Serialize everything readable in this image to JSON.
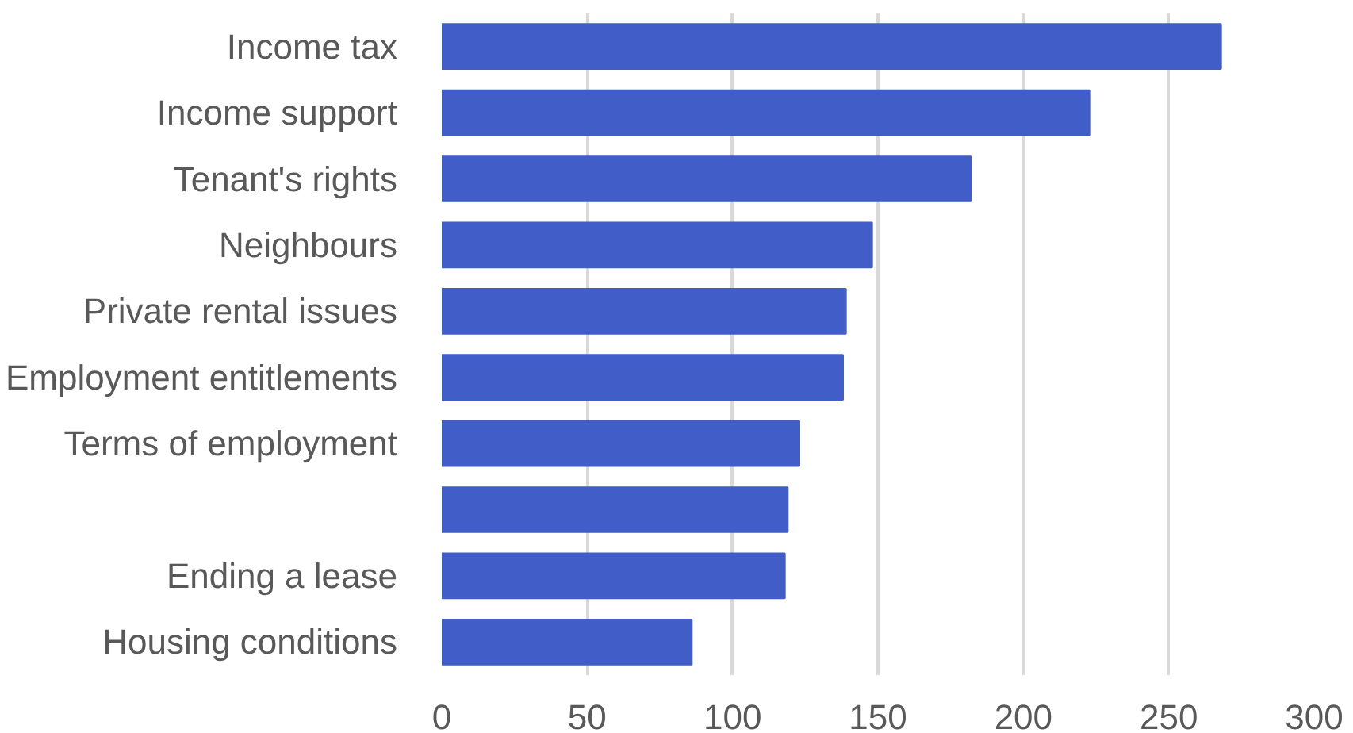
{
  "chart_data": {
    "type": "bar",
    "orientation": "horizontal",
    "categories": [
      "Income tax",
      "Income support",
      "Tenant's rights",
      "Neighbours",
      "Private rental issues",
      "Employment entitlements",
      "Terms of employment",
      null,
      "Ending a lease",
      "Housing conditions"
    ],
    "values": [
      268,
      223,
      182,
      148,
      139,
      138,
      123,
      119,
      118,
      86
    ],
    "color": "#405dc8",
    "xlim": [
      0,
      300
    ],
    "xticks": [
      0,
      50,
      100,
      150,
      200,
      250,
      300
    ],
    "grid": "x"
  }
}
